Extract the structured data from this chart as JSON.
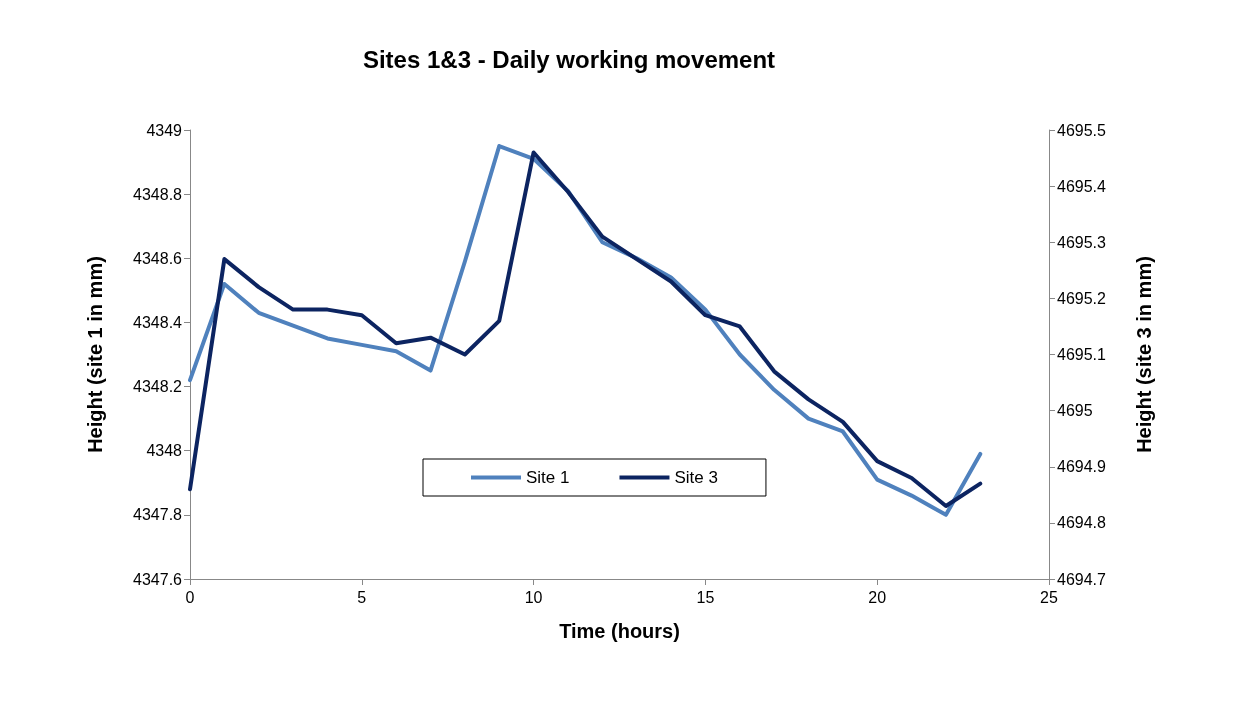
{
  "chart_data": {
    "type": "line",
    "title": "Sites 1&3 - Daily working movement",
    "xlabel": "Time (hours)",
    "ylabel": "Height (site 1 in mm)",
    "y2label": "Height (site 3 in mm)",
    "x": [
      0,
      1,
      2,
      3,
      4,
      5,
      6,
      7,
      8,
      9,
      10,
      11,
      12,
      13,
      14,
      15,
      16,
      17,
      18,
      19,
      20,
      21,
      22,
      23
    ],
    "xlim": [
      0,
      25
    ],
    "xticks": [
      0,
      5,
      10,
      15,
      20,
      25
    ],
    "ylim": [
      4347.6,
      4349
    ],
    "yticks": [
      4347.6,
      4347.8,
      4348,
      4348.2,
      4348.4,
      4348.6,
      4348.8,
      4349
    ],
    "y2lim": [
      4694.7,
      4695.5
    ],
    "y2ticks": [
      4694.7,
      4694.8,
      4694.9,
      4695,
      4695.1,
      4695.2,
      4695.3,
      4695.4,
      4695.5
    ],
    "grid": false,
    "legend": "bottom",
    "marker": "none",
    "line_style": "solid",
    "series": [
      {
        "name": "Site 1",
        "color": "#4f81bd",
        "values": [
          4348.22,
          4348.52,
          4348.43,
          4348.39,
          4348.35,
          4348.33,
          4348.31,
          4348.25,
          4348.59,
          4348.95,
          4348.91,
          4348.81,
          4348.65,
          4348.6,
          4348.54,
          4348.44,
          4348.3,
          4348.19,
          4348.1,
          4348.06,
          4347.91,
          4347.86,
          4347.8,
          4347.99
        ]
      },
      {
        "name": "Site 3",
        "color": "#0c2461",
        "axis": "y2",
        "values": [
          4694.86,
          4695.27,
          4695.22,
          4695.18,
          4695.18,
          4695.17,
          4695.12,
          4695.13,
          4695.1,
          4695.16,
          4695.46,
          4695.39,
          4695.31,
          4695.27,
          4695.23,
          4695.17,
          4695.15,
          4695.07,
          4695.02,
          4694.98,
          4694.91,
          4694.88,
          4694.83,
          4694.87
        ]
      }
    ]
  }
}
